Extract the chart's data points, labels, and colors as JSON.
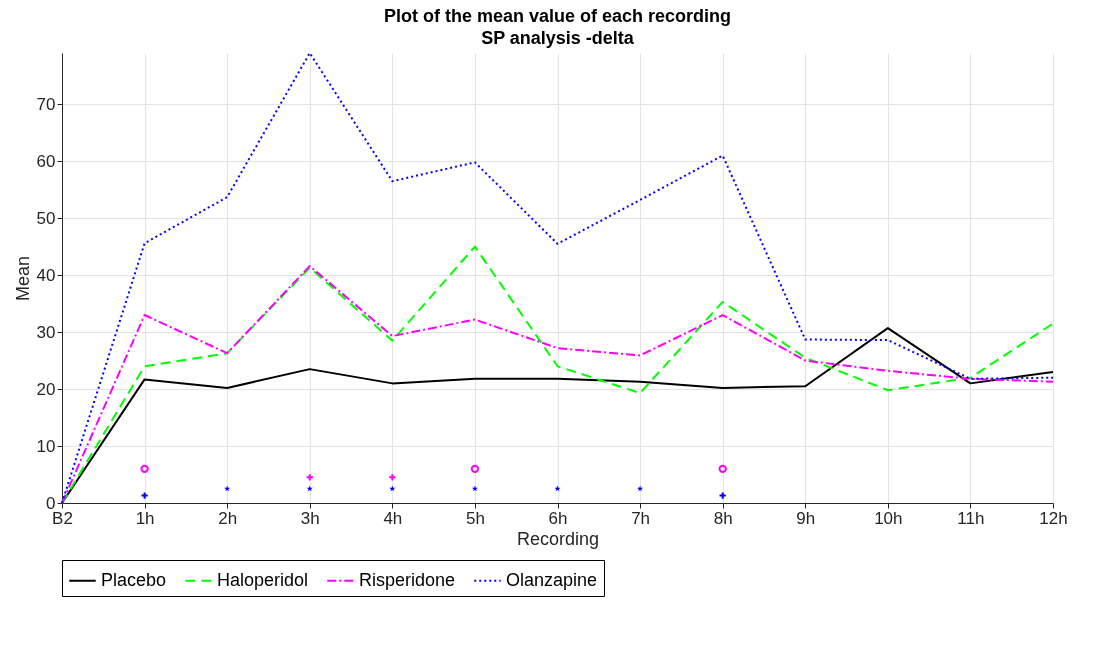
{
  "chart_data": {
    "type": "line",
    "title": "Plot of the mean value of each recording",
    "subtitle": "SP analysis -delta",
    "xlabel": "Recording",
    "ylabel": "Mean",
    "categories": [
      "B2",
      "1h",
      "2h",
      "3h",
      "4h",
      "5h",
      "6h",
      "7h",
      "8h",
      "9h",
      "10h",
      "11h",
      "12h"
    ],
    "series": [
      {
        "name": "Placebo",
        "color": "#000000",
        "line_style": "solid",
        "values": [
          0,
          21.7,
          20.2,
          23.5,
          21,
          21.8,
          21.8,
          21.3,
          20.2,
          20.5,
          30.7,
          21,
          23
        ]
      },
      {
        "name": "Haloperidol",
        "color": "#00ff00",
        "line_style": "dashed",
        "values": [
          0,
          24,
          26.3,
          41.3,
          28.5,
          45,
          24,
          19.3,
          35.3,
          25.5,
          19.8,
          22,
          31.5
        ]
      },
      {
        "name": "Risperidone",
        "color": "#ff00ff",
        "line_style": "dashdot",
        "values": [
          0,
          33,
          26.3,
          41.6,
          29.3,
          32.2,
          27.2,
          25.9,
          33,
          25,
          23.2,
          21.8,
          21.3
        ]
      },
      {
        "name": "Olanzapine",
        "color": "#0000ff",
        "line_style": "dotted",
        "values": [
          0,
          45.6,
          53.7,
          79,
          56.5,
          59.8,
          45.5,
          53.2,
          61,
          28.7,
          28.6,
          21.8,
          22
        ]
      },
      {
        "type": "scatter",
        "marker": "circle",
        "color": "#ff00ff",
        "x": [
          "1h",
          "5h",
          "8h"
        ],
        "values": [
          6,
          6,
          6
        ]
      },
      {
        "type": "scatter",
        "marker": "cross",
        "color": "#ff00ff",
        "x": [
          "3h",
          "4h"
        ],
        "values": [
          4.5,
          4.5
        ]
      },
      {
        "type": "scatter",
        "marker": "star",
        "color": "#0000ff",
        "x": [
          "2h",
          "3h",
          "4h",
          "5h",
          "6h",
          "7h"
        ],
        "values": [
          2.5,
          2.5,
          2.5,
          2.5,
          2.5,
          2.5
        ]
      },
      {
        "type": "scatter",
        "marker": "cross",
        "color": "#0000ff",
        "x": [
          "1h",
          "8h"
        ],
        "values": [
          1.3,
          1.3
        ]
      }
    ],
    "ylim": [
      0,
      79
    ],
    "yticks": [
      0,
      10,
      20,
      30,
      40,
      50,
      60,
      70
    ],
    "grid": true,
    "legend": "bottom",
    "marker": "none"
  }
}
